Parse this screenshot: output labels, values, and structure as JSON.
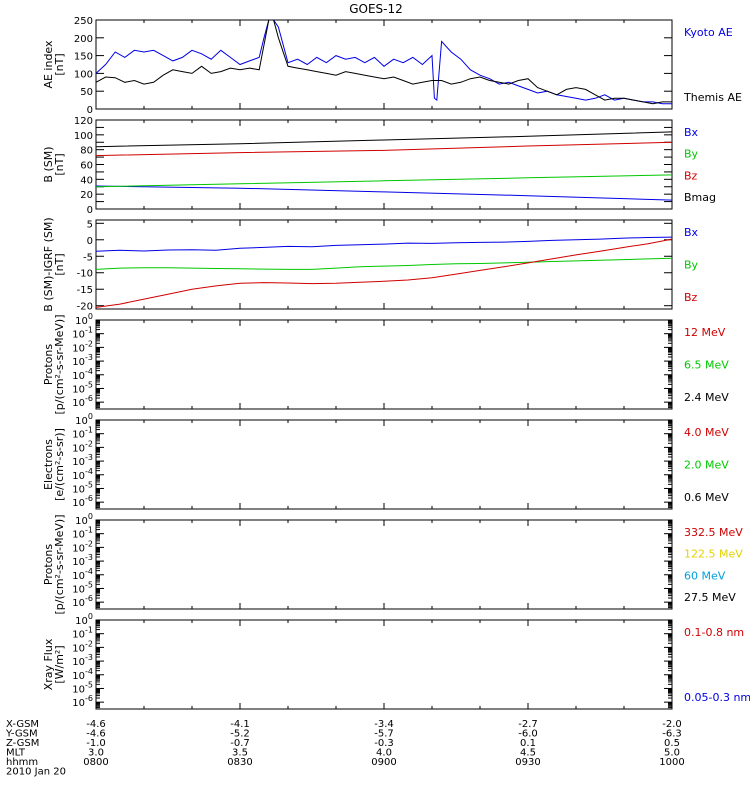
{
  "title": "GOES-12",
  "colors": {
    "black": "#000000",
    "red": "#d00000",
    "green": "#00c800",
    "blue": "#0000e6",
    "yellow": "#e6d200",
    "cyan": "#00a0dc"
  },
  "time_axis": {
    "x_range_minutes": [
      480,
      600
    ],
    "ticks": [
      480,
      510,
      540,
      570,
      600
    ],
    "rows": [
      {
        "label": "X-GSM",
        "values": [
          "-4.6",
          "-4.1",
          "-3.4",
          "-2.7",
          "-2.0"
        ]
      },
      {
        "label": "Y-GSM",
        "values": [
          "-4.6",
          "-5.2",
          "-5.7",
          "-6.0",
          "-6.3"
        ]
      },
      {
        "label": "Z-GSM",
        "values": [
          "-1.0",
          "-0.7",
          "-0.3",
          "0.1",
          "0.5"
        ]
      },
      {
        "label": "MLT",
        "values": [
          "3.0",
          "3.5",
          "4.0",
          "4.5",
          "5.0"
        ]
      },
      {
        "label": "hhmm",
        "values": [
          "0800",
          "0830",
          "0900",
          "0930",
          "1000"
        ]
      }
    ],
    "date": "2010 Jan 20"
  },
  "chart_data": [
    {
      "type": "line",
      "ylabel": "AE index",
      "yunit": "[nT]",
      "ylim": [
        0,
        250
      ],
      "yticks": [
        0,
        50,
        100,
        150,
        200,
        250
      ],
      "series": [
        {
          "name": "Kyoto AE",
          "color": "#0000e6",
          "x": [
            480,
            482,
            484,
            486,
            488,
            490,
            492,
            494,
            496,
            498,
            500,
            502,
            504,
            506,
            508,
            510,
            512,
            514,
            515,
            516,
            517,
            518,
            520,
            522,
            524,
            526,
            528,
            530,
            532,
            534,
            536,
            538,
            540,
            542,
            544,
            546,
            548,
            550,
            550.5,
            551,
            552,
            554,
            556,
            558,
            560,
            562,
            564,
            566,
            568,
            570,
            572,
            574,
            576,
            578,
            580,
            582,
            584,
            586,
            588,
            590,
            592,
            594,
            596,
            598,
            600
          ],
          "y": [
            100,
            125,
            160,
            145,
            165,
            160,
            165,
            150,
            135,
            145,
            165,
            155,
            140,
            165,
            145,
            125,
            135,
            145,
            200,
            250,
            255,
            230,
            130,
            140,
            125,
            145,
            130,
            150,
            140,
            145,
            130,
            145,
            120,
            140,
            130,
            145,
            125,
            150,
            30,
            25,
            190,
            160,
            140,
            110,
            95,
            85,
            70,
            75,
            65,
            55,
            45,
            50,
            40,
            35,
            30,
            25,
            30,
            40,
            25,
            30,
            25,
            20,
            20,
            15,
            15
          ]
        },
        {
          "name": "Themis AE",
          "color": "#000000",
          "x": [
            480,
            482,
            484,
            486,
            488,
            490,
            492,
            494,
            496,
            498,
            500,
            502,
            504,
            506,
            508,
            510,
            512,
            514,
            515,
            516,
            517,
            518,
            520,
            522,
            524,
            526,
            528,
            530,
            532,
            534,
            536,
            538,
            540,
            542,
            544,
            546,
            548,
            550,
            552,
            554,
            556,
            558,
            560,
            562,
            564,
            566,
            568,
            570,
            572,
            574,
            576,
            578,
            580,
            582,
            584,
            586,
            588,
            590,
            592,
            594,
            596,
            598,
            600
          ],
          "y": [
            75,
            90,
            88,
            75,
            80,
            70,
            75,
            95,
            110,
            105,
            100,
            120,
            100,
            105,
            115,
            110,
            115,
            110,
            180,
            250,
            260,
            200,
            120,
            115,
            110,
            105,
            100,
            95,
            105,
            100,
            95,
            90,
            85,
            90,
            80,
            70,
            75,
            80,
            80,
            70,
            75,
            85,
            90,
            80,
            75,
            70,
            80,
            85,
            60,
            50,
            40,
            55,
            60,
            55,
            40,
            25,
            30,
            30,
            25,
            20,
            15,
            20,
            20
          ]
        }
      ]
    },
    {
      "type": "line",
      "ylabel": "B (SM)",
      "yunit": "[nT]",
      "ylim": [
        0,
        120
      ],
      "yticks": [
        0,
        10,
        20,
        30,
        40,
        50,
        60,
        70,
        80,
        90,
        100,
        110,
        120
      ],
      "yticklabels": [
        0,
        20,
        40,
        60,
        80,
        100,
        120
      ],
      "series": [
        {
          "name": "Bx",
          "color": "#0000e6",
          "x": [
            480,
            510,
            540,
            570,
            600
          ],
          "y": [
            31,
            28,
            23,
            18,
            12
          ]
        },
        {
          "name": "By",
          "color": "#00c800",
          "x": [
            480,
            510,
            540,
            570,
            600
          ],
          "y": [
            30,
            34,
            38,
            42,
            46
          ]
        },
        {
          "name": "Bz",
          "color": "#d00000",
          "x": [
            480,
            510,
            540,
            570,
            600
          ],
          "y": [
            72,
            76,
            79,
            85,
            90
          ]
        },
        {
          "name": "Bmag",
          "color": "#000000",
          "x": [
            480,
            510,
            540,
            570,
            600
          ],
          "y": [
            84,
            88,
            93,
            98,
            104
          ]
        }
      ]
    },
    {
      "type": "line",
      "ylabel": "B (SM)-IGRF (SM)",
      "yunit": "[nT]",
      "ylim": [
        -21,
        6
      ],
      "yticks": [
        -20,
        -15,
        -10,
        -5,
        0,
        5
      ],
      "series": [
        {
          "name": "Bx",
          "color": "#0000e6",
          "x": [
            480,
            485,
            490,
            495,
            500,
            505,
            510,
            515,
            520,
            525,
            530,
            535,
            540,
            545,
            550,
            555,
            560,
            565,
            570,
            575,
            580,
            585,
            590,
            595,
            600
          ],
          "y": [
            -3.5,
            -3.2,
            -3.4,
            -3.1,
            -3,
            -3.2,
            -2.6,
            -2.3,
            -2,
            -2.1,
            -1.7,
            -1.5,
            -1.3,
            -1,
            -1.1,
            -0.9,
            -0.8,
            -0.7,
            -0.5,
            -0.2,
            0,
            0.2,
            0.5,
            0.7,
            0.8
          ]
        },
        {
          "name": "By",
          "color": "#00c800",
          "x": [
            480,
            485,
            490,
            495,
            500,
            505,
            510,
            515,
            520,
            525,
            530,
            535,
            540,
            545,
            550,
            555,
            560,
            565,
            570,
            575,
            580,
            585,
            590,
            595,
            600
          ],
          "y": [
            -9,
            -8.6,
            -8.5,
            -8.5,
            -8.6,
            -8.7,
            -8.8,
            -8.9,
            -9,
            -9,
            -8.6,
            -8.2,
            -8,
            -7.8,
            -7.5,
            -7.3,
            -7.2,
            -7,
            -6.8,
            -6.6,
            -6.4,
            -6.2,
            -6,
            -5.8,
            -5.6
          ]
        },
        {
          "name": "Bz",
          "color": "#d00000",
          "x": [
            480,
            485,
            490,
            495,
            500,
            505,
            510,
            515,
            520,
            525,
            530,
            535,
            540,
            545,
            550,
            555,
            560,
            565,
            570,
            575,
            580,
            585,
            590,
            595,
            600
          ],
          "y": [
            -20.5,
            -19.5,
            -18,
            -16.5,
            -15,
            -14,
            -13.2,
            -13,
            -13.1,
            -13.3,
            -13.2,
            -12.9,
            -12.6,
            -12.2,
            -11.5,
            -10.4,
            -9.3,
            -8.2,
            -7,
            -5.8,
            -4.6,
            -3.5,
            -2.3,
            -1.2,
            0.2
          ]
        }
      ]
    },
    {
      "type": "line",
      "ylabel": "Protons",
      "yunit": "[p/(cm²-s-sr-MeV)]",
      "yscale": "log",
      "ylim": [
        -6.5,
        0
      ],
      "yticks": [
        -6,
        -5,
        -4,
        -3,
        -2,
        -1,
        0
      ],
      "series": [
        {
          "name": "12 MeV",
          "color": "#d00000"
        },
        {
          "name": "6.5 MeV",
          "color": "#00c800"
        },
        {
          "name": "2.4 MeV",
          "color": "#000000"
        }
      ]
    },
    {
      "type": "line",
      "ylabel": "Electrons",
      "yunit": "[e/(cm²-s-sr)]",
      "yscale": "log",
      "ylim": [
        -6.5,
        0
      ],
      "yticks": [
        -6,
        -5,
        -4,
        -3,
        -2,
        -1,
        0
      ],
      "series": [
        {
          "name": "4.0 MeV",
          "color": "#d00000"
        },
        {
          "name": "2.0 MeV",
          "color": "#00c800"
        },
        {
          "name": "0.6 MeV",
          "color": "#000000"
        }
      ]
    },
    {
      "type": "line",
      "ylabel": "Protons",
      "yunit": "[p/(cm²-s-sr-MeV)]",
      "yscale": "log",
      "ylim": [
        -6.5,
        0
      ],
      "yticks": [
        -6,
        -5,
        -4,
        -3,
        -2,
        -1,
        0
      ],
      "series": [
        {
          "name": "332.5 MeV",
          "color": "#d00000"
        },
        {
          "name": "122.5 MeV",
          "color": "#e6d200"
        },
        {
          "name": "60 MeV",
          "color": "#00a0dc"
        },
        {
          "name": "27.5 MeV",
          "color": "#000000"
        }
      ]
    },
    {
      "type": "line",
      "ylabel": "Xray Flux",
      "yunit": "[W/m²]",
      "yscale": "log",
      "ylim": [
        -6.5,
        0
      ],
      "yticks": [
        -6,
        -5,
        -4,
        -3,
        -2,
        -1,
        0
      ],
      "series": [
        {
          "name": "0.1-0.8 nm",
          "color": "#d00000"
        },
        {
          "name": "0.05-0.3 nm",
          "color": "#0000e6"
        }
      ]
    }
  ]
}
